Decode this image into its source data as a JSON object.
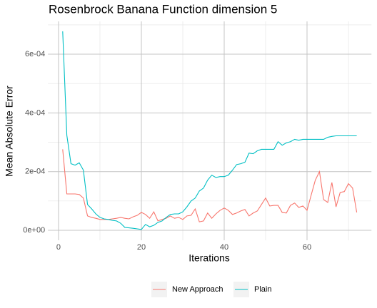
{
  "chart_data": {
    "type": "line",
    "title": "Rosenbrock Banana Function dimension 5",
    "xlabel": "Iterations",
    "ylabel": "Mean Absolute Error",
    "x": [
      1,
      2,
      3,
      4,
      5,
      6,
      7,
      8,
      9,
      10,
      11,
      12,
      13,
      14,
      15,
      16,
      17,
      18,
      19,
      20,
      21,
      22,
      23,
      24,
      25,
      26,
      27,
      28,
      29,
      30,
      31,
      32,
      33,
      34,
      35,
      36,
      37,
      38,
      39,
      40,
      41,
      42,
      43,
      44,
      45,
      46,
      47,
      48,
      49,
      50,
      51,
      52,
      53,
      54,
      55,
      56,
      57,
      58,
      59,
      60,
      61,
      62,
      63,
      64,
      65,
      66,
      67,
      68,
      69,
      70,
      71,
      72
    ],
    "series": [
      {
        "name": "New Approach",
        "color": "#F8766D",
        "values": [
          0.000276,
          0.000124,
          0.000124,
          0.000124,
          0.000122,
          0.00011,
          4.9e-05,
          4.4e-05,
          4.1e-05,
          3.7e-05,
          3.7e-05,
          3.7e-05,
          3.9e-05,
          4.1e-05,
          4.4e-05,
          4.1e-05,
          3.9e-05,
          4.6e-05,
          5.1e-05,
          6.1e-05,
          5.4e-05,
          4.1e-05,
          6.3e-05,
          3.2e-05,
          3.7e-05,
          4.1e-05,
          4.9e-05,
          4.1e-05,
          4.4e-05,
          3.7e-05,
          4.9e-05,
          5.1e-05,
          7.3e-05,
          2.9e-05,
          3.2e-05,
          5.9e-05,
          4.1e-05,
          5.6e-05,
          6.8e-05,
          7.6e-05,
          6.8e-05,
          5.4e-05,
          5.9e-05,
          6.6e-05,
          7.1e-05,
          4.9e-05,
          5.9e-05,
          6.6e-05,
          8.8e-05,
          0.00011,
          8.3e-05,
          8.5e-05,
          8.5e-05,
          6.1e-05,
          5.9e-05,
          8.5e-05,
          9.3e-05,
          7.8e-05,
          8.3e-05,
          6.8e-05,
          0.00012,
          0.000171,
          0.0002,
          0.000105,
          9.5e-05,
          0.000163,
          8e-05,
          0.000129,
          0.000132,
          0.000159,
          0.000144,
          6.1e-05
        ]
      },
      {
        "name": "Plain",
        "color": "#00BFC4",
        "values": [
          0.000678,
          0.000324,
          0.000227,
          0.000222,
          0.00023,
          0.000205,
          8.8e-05,
          7.3e-05,
          5.6e-05,
          4.4e-05,
          3.9e-05,
          3.7e-05,
          3.4e-05,
          3.2e-05,
          2.4e-05,
          1e-05,
          8.5e-06,
          7e-06,
          5e-06,
          3e-06,
          2e-05,
          1.2e-05,
          1.7e-05,
          2.7e-05,
          3.2e-05,
          4.4e-05,
          5.4e-05,
          5.6e-05,
          5.6e-05,
          6.3e-05,
          8e-05,
          0.0001,
          0.00011,
          0.000134,
          0.000144,
          0.000171,
          0.000188,
          0.00018,
          0.000183,
          0.000183,
          0.000188,
          0.000205,
          0.000224,
          0.000227,
          0.000232,
          0.000263,
          0.000261,
          0.000271,
          0.000276,
          0.000276,
          0.000276,
          0.000276,
          0.000302,
          0.00029,
          0.000298,
          0.000302,
          0.00031,
          0.000307,
          0.00031,
          0.00031,
          0.00031,
          0.00031,
          0.00031,
          0.00031,
          0.000317,
          0.00032,
          0.000322,
          0.000322,
          0.000322,
          0.000322,
          0.000322,
          0.000322
        ]
      }
    ],
    "xlim": [
      -2.55,
      75.55
    ],
    "xticks": [
      0,
      20,
      40,
      60
    ],
    "x_minor_ticks": [
      10,
      30,
      50,
      70
    ],
    "ylim": [
      -3.39e-05,
      0.0007119
    ],
    "yticks": [
      {
        "value": 0,
        "label": "0e+00"
      },
      {
        "value": 0.0002,
        "label": "2e-04"
      },
      {
        "value": 0.0004,
        "label": "4e-04"
      },
      {
        "value": 0.0006,
        "label": "6e-04"
      }
    ],
    "y_minor_ticks": [
      0.0001,
      0.0003,
      0.0005,
      0.0007
    ],
    "grid": true,
    "legend": "bottom"
  }
}
